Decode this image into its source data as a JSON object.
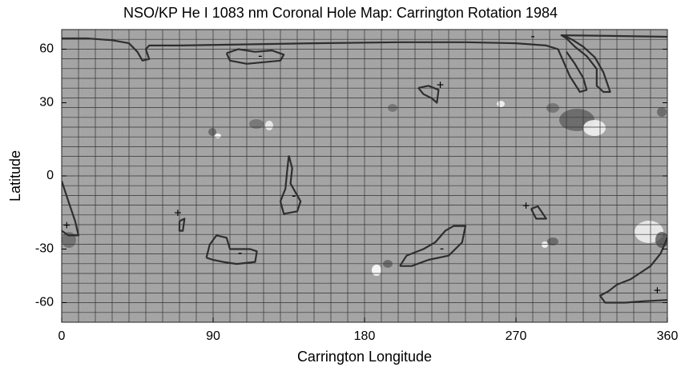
{
  "chart_data": {
    "type": "contour-map",
    "title": "NSO/KP He I 1083 nm Coronal Hole Map: Carrington Rotation 1984",
    "x_label": "Carrington Longitude",
    "y_label": "Latitude",
    "xlim": [
      0,
      360
    ],
    "ylim": [
      -90,
      90
    ],
    "y_scale": "sine",
    "xticks": [
      0,
      90,
      180,
      270,
      360
    ],
    "yticks": [
      -60,
      -30,
      0,
      30,
      60
    ],
    "grid": {
      "x_step": 10,
      "sin_lat_divisions": 15
    },
    "contour_color": "#2e2e2e",
    "contours": [
      {
        "x": [
          0,
          15,
          30,
          40,
          45,
          48,
          52,
          50,
          52,
          70,
          110,
          150,
          200,
          240,
          270,
          288,
          295,
          298,
          302,
          308,
          312,
          310,
          305,
          300
        ],
        "y": [
          70,
          70,
          68,
          65,
          58,
          52,
          53,
          60,
          63,
          63,
          64,
          65,
          66,
          66,
          65,
          63,
          60,
          52,
          43,
          35,
          36,
          42,
          50,
          58
        ]
      },
      {
        "x": [
          297,
          300,
          305,
          312,
          318,
          318,
          322,
          326,
          322,
          317,
          310,
          304,
          300,
          297,
          330,
          360
        ],
        "y": [
          74,
          70,
          62,
          55,
          47,
          38,
          35,
          35,
          45,
          54,
          62,
          68,
          72,
          74,
          73,
          72
        ]
      },
      {
        "x": [
          98,
          105,
          115,
          125,
          132,
          130,
          120,
          110,
          100,
          98
        ],
        "y": [
          57,
          60,
          58,
          59,
          56,
          52,
          51,
          50,
          52,
          57
        ]
      },
      {
        "x": [
          212,
          218,
          224,
          223,
          220,
          215,
          212
        ],
        "y": [
          37,
          38,
          36,
          30,
          32,
          34,
          37
        ]
      },
      {
        "x": [
          135,
          137,
          136,
          142,
          140,
          132,
          130,
          133,
          134,
          135
        ],
        "y": [
          8,
          3,
          -3,
          -10,
          -14,
          -15,
          -10,
          -5,
          2,
          8
        ]
      },
      {
        "x": [
          70,
          73,
          72,
          70,
          70
        ],
        "y": [
          -18,
          -17,
          -22,
          -22,
          -18
        ]
      },
      {
        "x": [
          86,
          88,
          92,
          98,
          100,
          112,
          116,
          115,
          104,
          96,
          90,
          86
        ],
        "y": [
          -34,
          -28,
          -24,
          -25,
          -30,
          -30,
          -31,
          -36,
          -37,
          -36,
          -35,
          -34
        ]
      },
      {
        "x": [
          201,
          205,
          215,
          222,
          228,
          233,
          240,
          238,
          230,
          218,
          208,
          201
        ],
        "y": [
          -38,
          -33,
          -30,
          -27,
          -22,
          -20,
          -20,
          -27,
          -33,
          -35,
          -38,
          -38
        ]
      },
      {
        "x": [
          279,
          283,
          288,
          282,
          279
        ],
        "y": [
          -13,
          -12,
          -17,
          -17,
          -13
        ]
      },
      {
        "x": [
          0,
          4,
          8,
          10,
          4,
          0
        ],
        "y": [
          -2,
          -10,
          -18,
          -24,
          -24,
          -22
        ]
      },
      {
        "x": [
          360,
          356,
          350,
          343,
          338,
          330,
          325,
          320,
          323,
          335,
          345,
          360
        ],
        "y": [
          -25,
          -32,
          -38,
          -42,
          -45,
          -48,
          -52,
          -55,
          -60,
          -60,
          -59,
          -58
        ]
      }
    ],
    "polarity_marks": [
      {
        "text": "+",
        "x": 225,
        "y": 38
      },
      {
        "text": "+",
        "x": 69,
        "y": -15
      },
      {
        "text": "+",
        "x": 276,
        "y": -12
      },
      {
        "text": "+",
        "x": 354,
        "y": -52
      },
      {
        "text": "+",
        "x": 3,
        "y": -20
      },
      {
        "text": "-",
        "x": 118,
        "y": 55
      },
      {
        "text": "-",
        "x": 280,
        "y": 72
      },
      {
        "text": "-",
        "x": 106,
        "y": -32
      },
      {
        "text": "-",
        "x": 226,
        "y": -30
      },
      {
        "text": "-",
        "x": 138,
        "y": -8
      }
    ]
  }
}
